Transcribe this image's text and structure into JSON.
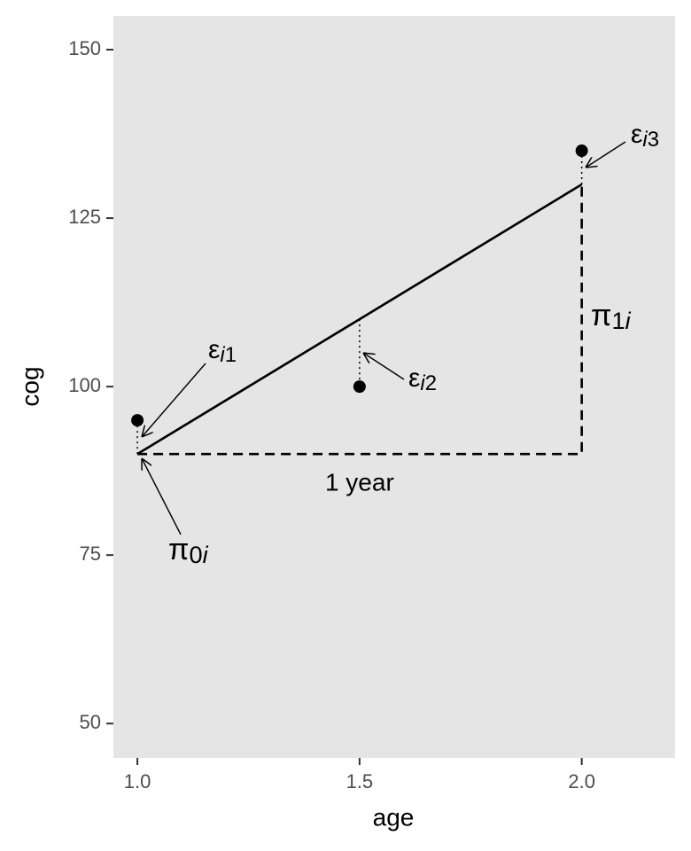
{
  "chart_data": {
    "type": "growth",
    "x_label": "age",
    "y_label": "cog",
    "xlim": [
      0.946,
      2.21
    ],
    "ylim": [
      44.9,
      155
    ],
    "xticks": [
      {
        "value": 1,
        "label": "1.0"
      },
      1.5,
      {
        "value": 2,
        "label": "2.0"
      }
    ],
    "yticks": [
      50,
      75,
      100,
      125,
      150
    ],
    "panel_color": "#e5e5e5",
    "color": "#000000",
    "x": [
      1,
      1.5,
      2
    ],
    "observed": [
      95,
      100,
      135
    ],
    "fitted": [
      90,
      110,
      130
    ],
    "change": {
      "x": [
        1,
        2,
        2
      ],
      "y": [
        90,
        90,
        130
      ]
    },
    "change_label": "1 year",
    "annotations": [
      {
        "symbol": "ε",
        "sub": [
          {
            "text": "i",
            "italic": true
          },
          {
            "text": "1"
          }
        ]
      },
      {
        "symbol": "ε",
        "sub": [
          {
            "text": "i",
            "italic": true
          },
          {
            "text": "2"
          }
        ]
      },
      {
        "symbol": "ε",
        "sub": [
          {
            "text": "i",
            "italic": true
          },
          {
            "text": "3"
          }
        ]
      },
      {
        "symbol": "π",
        "sub": [
          {
            "text": "0"
          },
          {
            "text": "i",
            "italic": true
          }
        ]
      },
      {
        "symbol": "π",
        "sub": [
          {
            "text": "1"
          },
          {
            "text": "i",
            "italic": true
          }
        ]
      }
    ]
  }
}
